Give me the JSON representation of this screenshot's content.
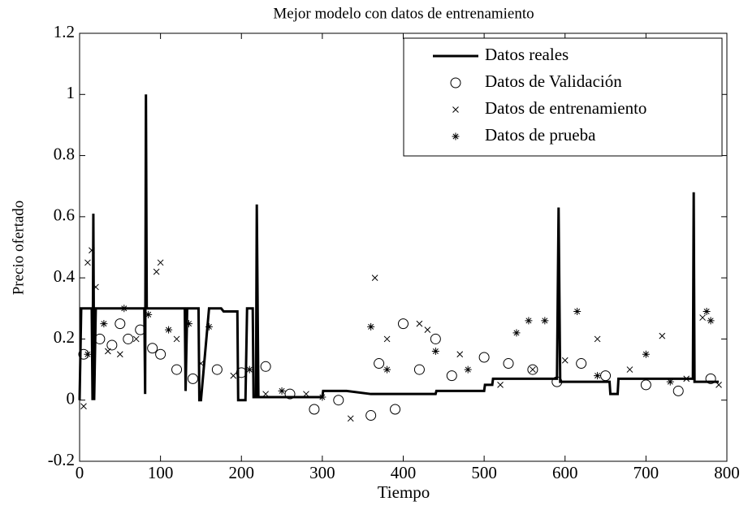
{
  "chart_data": {
    "type": "line",
    "title": "Mejor modelo con datos de entrenamiento",
    "x_label": "Tiempo",
    "y_label": "Precio ofertado",
    "xlim": [
      0,
      800
    ],
    "xticks": [
      0,
      100,
      200,
      300,
      400,
      500,
      600,
      700,
      800
    ],
    "ylim": [
      -0.2,
      1.2
    ],
    "yticks": [
      -0.2,
      0,
      0.2,
      0.4,
      0.6,
      0.8,
      1,
      1.2
    ],
    "grid": false,
    "legend": "upper right",
    "series": [
      {
        "name": "Datos reales",
        "marker": "none",
        "color": "#000000",
        "x": [
          0,
          2,
          15,
          16,
          17,
          18,
          20,
          80,
          81,
          82,
          83,
          130,
          131,
          133,
          147,
          148,
          150,
          160,
          175,
          178,
          195,
          196,
          205,
          207,
          214,
          215,
          218,
          219,
          221,
          300,
          301,
          330,
          360,
          440,
          441,
          500,
          501,
          510,
          511,
          590,
          592,
          594,
          655,
          656,
          665,
          666,
          758,
          759,
          760,
          790
        ],
        "values": [
          0,
          0.3,
          0.3,
          0,
          0.61,
          0,
          0.3,
          0.3,
          0.02,
          1,
          0.3,
          0.3,
          0.03,
          0.3,
          0.3,
          0,
          0,
          0.3,
          0.3,
          0.29,
          0.29,
          0,
          0,
          0.3,
          0.3,
          0.01,
          0.01,
          0.64,
          0.01,
          0.01,
          0.03,
          0.03,
          0.02,
          0.02,
          0.03,
          0.03,
          0.05,
          0.05,
          0.07,
          0.07,
          0.63,
          0.06,
          0.06,
          0.02,
          0.02,
          0.07,
          0.07,
          0.68,
          0.06,
          0.06
        ]
      },
      {
        "name": "Datos de Validación",
        "marker": "o",
        "color": "#000000",
        "x": [
          5,
          25,
          40,
          50,
          60,
          75,
          90,
          100,
          120,
          140,
          170,
          200,
          230,
          260,
          290,
          320,
          360,
          370,
          390,
          400,
          420,
          440,
          460,
          500,
          530,
          560,
          590,
          620,
          650,
          700,
          740,
          780
        ],
        "values": [
          0.15,
          0.2,
          0.18,
          0.25,
          0.2,
          0.23,
          0.17,
          0.15,
          0.1,
          0.07,
          0.1,
          0.09,
          0.11,
          0.02,
          -0.03,
          0,
          -0.05,
          0.12,
          -0.03,
          0.25,
          0.1,
          0.2,
          0.08,
          0.14,
          0.12,
          0.1,
          0.06,
          0.12,
          0.08,
          0.05,
          0.03,
          0.07
        ]
      },
      {
        "name": "Datos de entrenamiento",
        "marker": "x",
        "color": "#000000",
        "x": [
          5,
          10,
          15,
          20,
          35,
          50,
          70,
          95,
          100,
          120,
          150,
          190,
          230,
          280,
          335,
          365,
          380,
          420,
          430,
          470,
          520,
          560,
          600,
          640,
          680,
          720,
          750,
          770,
          790
        ],
        "values": [
          -0.02,
          0.45,
          0.49,
          0.37,
          0.16,
          0.15,
          0.2,
          0.42,
          0.45,
          0.2,
          0.12,
          0.08,
          0.02,
          0.02,
          -0.06,
          0.4,
          0.2,
          0.25,
          0.23,
          0.15,
          0.05,
          0.1,
          0.13,
          0.2,
          0.1,
          0.21,
          0.07,
          0.27,
          0.05
        ]
      },
      {
        "name": "Datos de prueba",
        "marker": "*",
        "color": "#000000",
        "x": [
          10,
          30,
          55,
          85,
          110,
          135,
          160,
          210,
          250,
          300,
          360,
          380,
          440,
          480,
          540,
          555,
          575,
          615,
          640,
          700,
          730,
          775,
          780
        ],
        "values": [
          0.15,
          0.25,
          0.3,
          0.28,
          0.23,
          0.25,
          0.24,
          0.1,
          0.03,
          0.01,
          0.24,
          0.1,
          0.16,
          0.1,
          0.22,
          0.26,
          0.26,
          0.29,
          0.08,
          0.15,
          0.06,
          0.29,
          0.26
        ]
      }
    ]
  }
}
